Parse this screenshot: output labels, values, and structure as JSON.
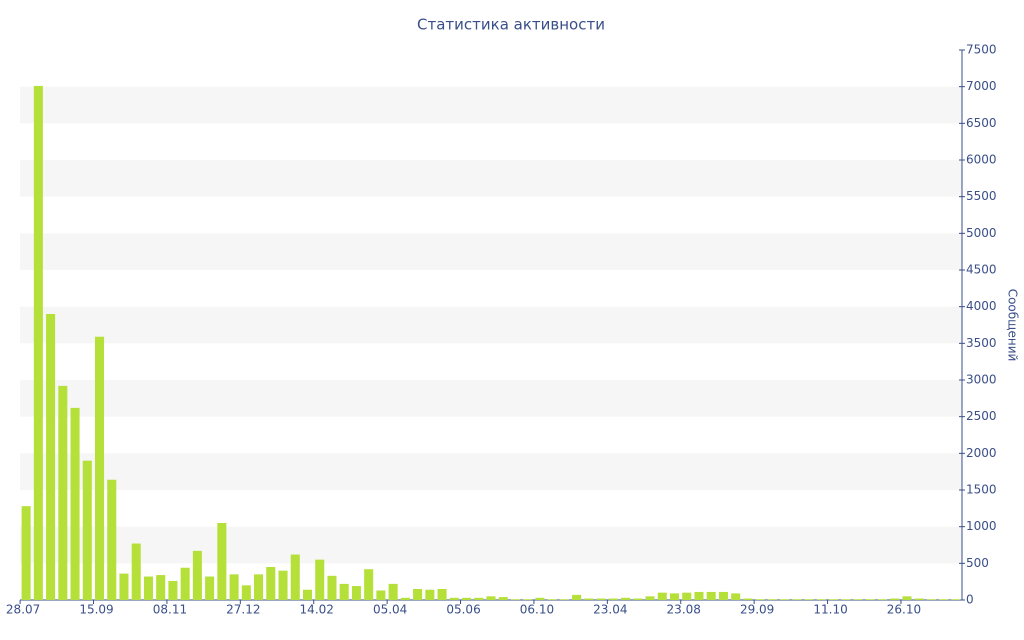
{
  "chart_data": {
    "type": "bar",
    "title": "Статистика активности",
    "y_label": "Сообщений",
    "categories": [
      "28.07",
      null,
      null,
      null,
      null,
      null,
      "15.09",
      null,
      null,
      null,
      null,
      null,
      "08.11",
      null,
      null,
      null,
      null,
      null,
      "27.12",
      null,
      null,
      null,
      null,
      null,
      "14.02",
      null,
      null,
      null,
      null,
      null,
      "05.04",
      null,
      null,
      null,
      null,
      null,
      "05.06",
      null,
      null,
      null,
      null,
      null,
      "06.10",
      null,
      null,
      null,
      null,
      null,
      "23.04",
      null,
      null,
      null,
      null,
      null,
      "23.08",
      null,
      null,
      null,
      null,
      null,
      "29.09",
      null,
      null,
      null,
      null,
      null,
      "11.10",
      null,
      null,
      null,
      null,
      null,
      "26.10",
      null,
      null,
      null,
      null
    ],
    "values": [
      1280,
      7010,
      3900,
      2920,
      2620,
      1900,
      3590,
      1640,
      360,
      770,
      320,
      340,
      260,
      440,
      670,
      320,
      1050,
      350,
      200,
      350,
      450,
      400,
      620,
      140,
      550,
      330,
      220,
      190,
      420,
      130,
      220,
      30,
      150,
      140,
      150,
      30,
      30,
      30,
      50,
      40,
      10,
      10,
      30,
      10,
      10,
      70,
      20,
      20,
      20,
      30,
      20,
      50,
      100,
      90,
      100,
      110,
      110,
      110,
      90,
      20,
      10,
      10,
      10,
      10,
      10,
      10,
      10,
      10,
      10,
      10,
      10,
      20,
      50,
      20,
      10,
      10,
      10
    ],
    "color": "#b5e03a",
    "ylim": [
      0,
      7500
    ],
    "yticks": [
      0,
      500,
      1000,
      1500,
      2000,
      2500,
      3000,
      3500,
      4000,
      4500,
      5000,
      5500,
      6000,
      6500,
      7000,
      7500
    ],
    "y_axis_side": "right",
    "grid": "bands"
  }
}
